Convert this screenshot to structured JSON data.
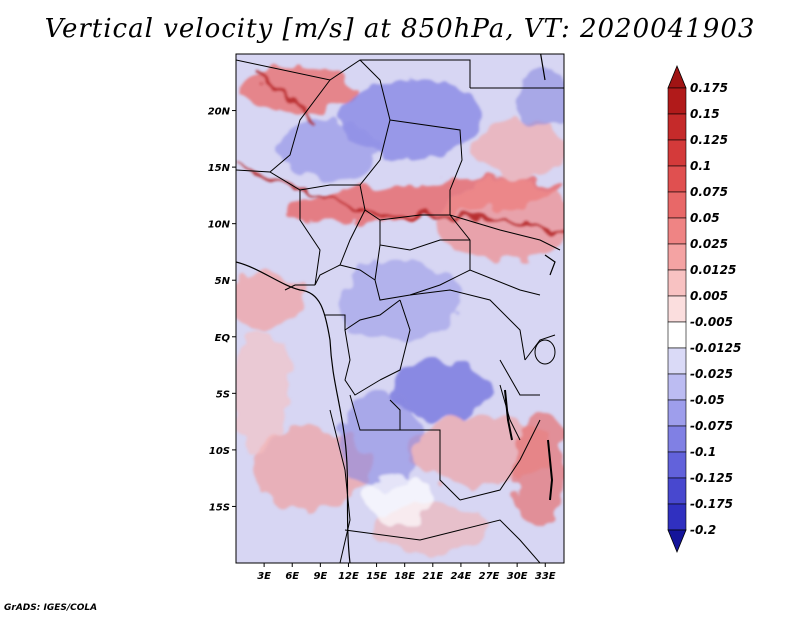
{
  "title": "Vertical velocity [m/s] at 850hPa, VT: 2020041903",
  "credit": "GrADS: IGES/COLA",
  "map": {
    "variable": "Vertical velocity",
    "units": "m/s",
    "level": "850hPa",
    "valid_time": "2020041903",
    "lon_range": [
      0,
      35
    ],
    "lat_range": [
      -20,
      25
    ],
    "lat_ticks": [
      {
        "value": 20,
        "label": "20N"
      },
      {
        "value": 15,
        "label": "15N"
      },
      {
        "value": 10,
        "label": "10N"
      },
      {
        "value": 5,
        "label": "5N"
      },
      {
        "value": 0,
        "label": "EQ"
      },
      {
        "value": -5,
        "label": "5S"
      },
      {
        "value": -10,
        "label": "10S"
      },
      {
        "value": -15,
        "label": "15S"
      }
    ],
    "lon_ticks": [
      {
        "value": 3,
        "label": "3E"
      },
      {
        "value": 6,
        "label": "6E"
      },
      {
        "value": 9,
        "label": "9E"
      },
      {
        "value": 12,
        "label": "12E"
      },
      {
        "value": 15,
        "label": "15E"
      },
      {
        "value": 18,
        "label": "18E"
      },
      {
        "value": 21,
        "label": "21E"
      },
      {
        "value": 24,
        "label": "24E"
      },
      {
        "value": 27,
        "label": "27E"
      },
      {
        "value": 30,
        "label": "30E"
      },
      {
        "value": 33,
        "label": "33E"
      }
    ]
  },
  "colorbar": {
    "levels": [
      {
        "label": "0.175",
        "color": "#b11a1a"
      },
      {
        "label": "0.15",
        "color": "#c52a2a"
      },
      {
        "label": "0.125",
        "color": "#d43a3a"
      },
      {
        "label": "0.1",
        "color": "#e05050"
      },
      {
        "label": "0.075",
        "color": "#e86868"
      },
      {
        "label": "0.05",
        "color": "#ef8484"
      },
      {
        "label": "0.025",
        "color": "#f4a3a3"
      },
      {
        "label": "0.0125",
        "color": "#f8c2c2"
      },
      {
        "label": "0.005",
        "color": "#fbdede"
      },
      {
        "label": "-0.005",
        "color": "#ffffff"
      },
      {
        "label": "-0.0125",
        "color": "#dadaf7"
      },
      {
        "label": "-0.025",
        "color": "#bcbcf2"
      },
      {
        "label": "-0.05",
        "color": "#9e9eec"
      },
      {
        "label": "-0.075",
        "color": "#8080e4"
      },
      {
        "label": "-0.1",
        "color": "#6262db"
      },
      {
        "label": "-0.125",
        "color": "#4848cf"
      },
      {
        "label": "-0.175",
        "color": "#3030c0"
      },
      {
        "label": "-0.2",
        "color": "#1e1eae"
      }
    ],
    "top_cap_color": "#a01414",
    "bottom_cap_color": "#14149a"
  }
}
